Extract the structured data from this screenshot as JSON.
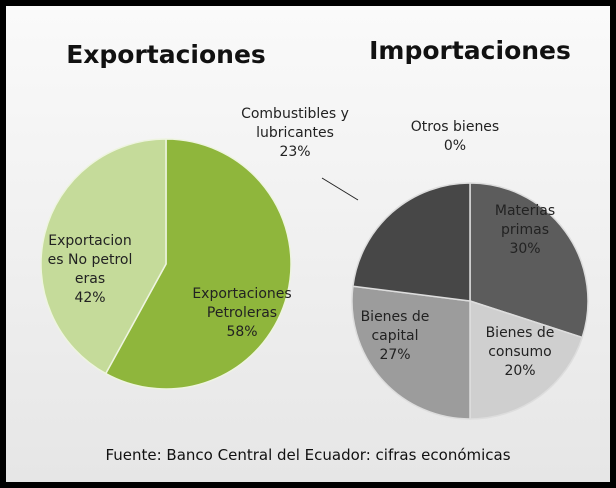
{
  "chart_data": [
    {
      "type": "pie",
      "title": "Exportaciones",
      "categories": [
        "Exportaciones Petroleras",
        "Exportaciones No petroleras"
      ],
      "values": [
        58,
        42
      ],
      "value_labels": [
        "58%",
        "42%"
      ],
      "colors": [
        "#8fb63c",
        "#c5db9a"
      ]
    },
    {
      "type": "pie",
      "title": "Importaciones",
      "categories": [
        "Otros bienes",
        "Materias primas",
        "Bienes de consumo",
        "Bienes de capital",
        "Combustibles y lubricantes"
      ],
      "values": [
        0,
        30,
        20,
        27,
        23
      ],
      "value_labels": [
        "0%",
        "30%",
        "20%",
        "27%",
        "23%"
      ],
      "colors": [
        "#777777",
        "#5c5c5c",
        "#cfcfcf",
        "#9c9c9c",
        "#474747"
      ]
    }
  ],
  "source": "Fuente: Banco Central del Ecuador: cifras económicas"
}
